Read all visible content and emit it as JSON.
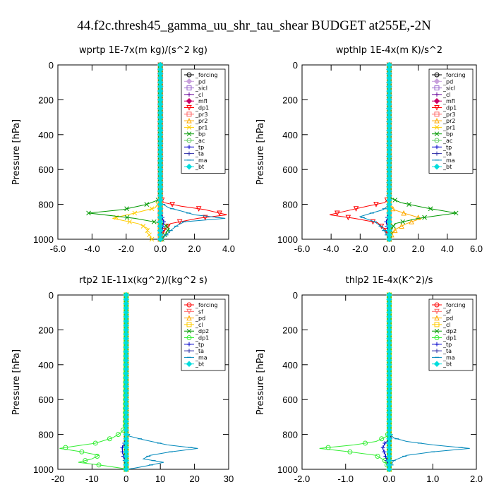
{
  "figure_title": "44.f2c.thresh45_gamma_uu_shr_tau_shear  BUDGET at255E,-2N",
  "chart_data": [
    {
      "type": "line",
      "title": "wprtp  1E-7x(m kg)/(s^2 kg)",
      "ylabel": "Pressure [hPa]",
      "xlim": [
        -6,
        4
      ],
      "ylim": [
        1000,
        0
      ],
      "xticks": [
        "-6.0",
        "-4.0",
        "-2.0",
        "0.0",
        "2.0",
        "4.0"
      ],
      "xtick_values": [
        -6,
        -4,
        -2,
        0,
        2,
        4
      ],
      "yticks": [
        "0",
        "200",
        "400",
        "600",
        "800",
        "1000"
      ],
      "ytick_values": [
        0,
        200,
        400,
        600,
        800,
        1000
      ],
      "legend_position": "top-right",
      "series": [
        {
          "name": "_forcing",
          "color": "#000000",
          "marker": "circle",
          "x": [
            0,
            0,
            0
          ],
          "y": [
            0,
            500,
            1000
          ]
        },
        {
          "name": "_pd",
          "color": "#c8a0dc",
          "marker": "diamond",
          "x": [
            0,
            0,
            0
          ],
          "y": [
            0,
            500,
            1000
          ]
        },
        {
          "name": "_sicl",
          "color": "#9966cc",
          "marker": "square",
          "x": [
            0,
            0,
            0
          ],
          "y": [
            0,
            500,
            1000
          ]
        },
        {
          "name": "_cl",
          "color": "#660099",
          "marker": "plus",
          "x": [
            0,
            0,
            0
          ],
          "y": [
            0,
            500,
            1000
          ]
        },
        {
          "name": "_mfl",
          "color": "#cc0066",
          "marker": "diamond",
          "x": [
            0,
            0,
            0
          ],
          "y": [
            0,
            500,
            1000
          ]
        },
        {
          "name": "_dp1",
          "color": "#ff0000",
          "marker": "triangle-down",
          "x": [
            0,
            0,
            0.2,
            1.2,
            2.6,
            3.9,
            2.2,
            0.6,
            0.1,
            0
          ],
          "y": [
            0,
            760,
            790,
            810,
            830,
            860,
            880,
            910,
            960,
            1000
          ]
        },
        {
          "name": "_pr3",
          "color": "#ff6666",
          "marker": "square",
          "x": [
            0,
            0,
            0
          ],
          "y": [
            0,
            500,
            1000
          ]
        },
        {
          "name": "_pr2",
          "color": "#ffaa00",
          "marker": "triangle-up",
          "x": [
            0,
            0,
            0
          ],
          "y": [
            0,
            500,
            1000
          ]
        },
        {
          "name": "_pr1",
          "color": "#ffcc00",
          "marker": "x",
          "x": [
            0,
            0,
            -0.3,
            -1.5,
            -2.8,
            -1.3,
            -0.7,
            -0.8,
            -0.6,
            -0.5
          ],
          "y": [
            0,
            780,
            820,
            850,
            880,
            910,
            940,
            960,
            980,
            1000
          ]
        },
        {
          "name": "_bp",
          "color": "#009900",
          "marker": "x",
          "x": [
            0,
            0,
            -0.8,
            -2.2,
            -4.2,
            -1.5,
            0.2,
            0.5,
            0.3,
            0.1
          ],
          "y": [
            0,
            770,
            800,
            830,
            850,
            880,
            910,
            940,
            970,
            1000
          ]
        },
        {
          "name": "_ac",
          "color": "#66cc66",
          "marker": "circle",
          "x": [
            0,
            0,
            0
          ],
          "y": [
            0,
            500,
            1000
          ]
        },
        {
          "name": "_tp",
          "color": "#0000cc",
          "marker": "plus",
          "x": [
            0,
            0,
            0.1,
            0.2,
            0.1,
            0
          ],
          "y": [
            0,
            840,
            870,
            900,
            950,
            1000
          ]
        },
        {
          "name": "_ta",
          "color": "#3333aa",
          "marker": "plus",
          "x": [
            0,
            0,
            0
          ],
          "y": [
            0,
            500,
            1000
          ]
        },
        {
          "name": "_ma",
          "color": "#0088bb",
          "marker": "dash",
          "x": [
            0,
            0,
            0.5,
            1.3,
            2.0,
            3.8,
            1.4,
            1.0,
            0.6,
            0.3,
            0
          ],
          "y": [
            0,
            790,
            820,
            840,
            860,
            880,
            900,
            920,
            950,
            980,
            1000
          ]
        },
        {
          "name": "_bt",
          "color": "#00dddd",
          "marker": "diamond",
          "x": [
            0,
            0,
            0
          ],
          "y": [
            0,
            500,
            1000
          ]
        }
      ]
    },
    {
      "type": "line",
      "title": "wpthlp  1E-4x(m K)/s^2",
      "ylabel": "Pressure [hPa]",
      "xlim": [
        -6,
        6
      ],
      "ylim": [
        1000,
        0
      ],
      "xticks": [
        "-6.0",
        "-4.0",
        "-2.0",
        "0.0",
        "2.0",
        "4.0",
        "6.0"
      ],
      "xtick_values": [
        -6,
        -4,
        -2,
        0,
        2,
        4,
        6
      ],
      "yticks": [
        "0",
        "200",
        "400",
        "600",
        "800",
        "1000"
      ],
      "ytick_values": [
        0,
        200,
        400,
        600,
        800,
        1000
      ],
      "legend_position": "top-right",
      "series": [
        {
          "name": "_forcing",
          "color": "#000000",
          "marker": "circle",
          "x": [
            0,
            0,
            0
          ],
          "y": [
            0,
            500,
            1000
          ]
        },
        {
          "name": "_pd",
          "color": "#c8a0dc",
          "marker": "diamond",
          "x": [
            0,
            0,
            0
          ],
          "y": [
            0,
            500,
            1000
          ]
        },
        {
          "name": "_sicl",
          "color": "#9966cc",
          "marker": "square",
          "x": [
            0,
            0,
            0
          ],
          "y": [
            0,
            500,
            1000
          ]
        },
        {
          "name": "_cl",
          "color": "#660099",
          "marker": "plus",
          "x": [
            0,
            0,
            0
          ],
          "y": [
            0,
            500,
            1000
          ]
        },
        {
          "name": "_mfl",
          "color": "#cc0066",
          "marker": "diamond",
          "x": [
            0,
            0,
            0
          ],
          "y": [
            0,
            500,
            1000
          ]
        },
        {
          "name": "_dp1",
          "color": "#ff0000",
          "marker": "triangle-down",
          "x": [
            0,
            0,
            -0.3,
            -1.5,
            -2.8,
            -4.1,
            -2.4,
            -0.8,
            -0.2,
            0
          ],
          "y": [
            0,
            760,
            790,
            810,
            835,
            860,
            880,
            905,
            950,
            1000
          ]
        },
        {
          "name": "_pr3",
          "color": "#ff6666",
          "marker": "square",
          "x": [
            0,
            0,
            0
          ],
          "y": [
            0,
            500,
            1000
          ]
        },
        {
          "name": "_pr2",
          "color": "#ffaa00",
          "marker": "triangle-up",
          "x": [
            0,
            0,
            0.3,
            1.0,
            2.2,
            1.2,
            0.5,
            0.2,
            0
          ],
          "y": [
            0,
            800,
            830,
            850,
            880,
            910,
            940,
            970,
            1000
          ]
        },
        {
          "name": "_pr1",
          "color": "#ffcc00",
          "marker": "x",
          "x": [
            0,
            0,
            0
          ],
          "y": [
            0,
            500,
            1000
          ]
        },
        {
          "name": "_bp",
          "color": "#009900",
          "marker": "x",
          "x": [
            0,
            0,
            0.8,
            2.5,
            4.6,
            2.0,
            0.4,
            0.1,
            0
          ],
          "y": [
            0,
            760,
            790,
            820,
            850,
            880,
            910,
            950,
            1000
          ]
        },
        {
          "name": "_ac",
          "color": "#66cc66",
          "marker": "circle",
          "x": [
            0,
            0,
            0
          ],
          "y": [
            0,
            500,
            1000
          ]
        },
        {
          "name": "_tp",
          "color": "#0000cc",
          "marker": "plus",
          "x": [
            0,
            0,
            -0.1,
            -0.2,
            -0.1,
            0
          ],
          "y": [
            0,
            840,
            870,
            900,
            950,
            1000
          ]
        },
        {
          "name": "_ta",
          "color": "#3333aa",
          "marker": "plus",
          "x": [
            0,
            0,
            0
          ],
          "y": [
            0,
            500,
            1000
          ]
        },
        {
          "name": "_ma",
          "color": "#0088bb",
          "marker": "dash",
          "x": [
            0,
            0,
            -0.4,
            -1.2,
            -2.0,
            -1.0,
            -0.5,
            -0.2,
            0
          ],
          "y": [
            0,
            800,
            830,
            850,
            870,
            900,
            930,
            970,
            1000
          ]
        },
        {
          "name": "_bt",
          "color": "#00dddd",
          "marker": "diamond",
          "x": [
            0,
            0,
            0
          ],
          "y": [
            0,
            500,
            1000
          ]
        }
      ]
    },
    {
      "type": "line",
      "title": "rtp2  1E-11x(kg^2)/(kg^2 s)",
      "ylabel": "Pressure [hPa]",
      "xlim": [
        -20,
        30
      ],
      "ylim": [
        1000,
        0
      ],
      "xticks": [
        "-20",
        "-10",
        "0",
        "10",
        "20",
        "30"
      ],
      "xtick_values": [
        -20,
        -10,
        0,
        10,
        20,
        30
      ],
      "yticks": [
        "0",
        "200",
        "400",
        "600",
        "800",
        "1000"
      ],
      "ytick_values": [
        0,
        200,
        400,
        600,
        800,
        1000
      ],
      "legend_position": "top-right",
      "series": [
        {
          "name": "_forcing",
          "color": "#ff0000",
          "marker": "circle",
          "x": [
            0,
            0,
            0
          ],
          "y": [
            0,
            500,
            1000
          ]
        },
        {
          "name": "_sf",
          "color": "#ff6666",
          "marker": "triangle-down",
          "x": [
            0,
            0,
            0
          ],
          "y": [
            0,
            500,
            1000
          ]
        },
        {
          "name": "_pd",
          "color": "#ffaa00",
          "marker": "triangle-up",
          "x": [
            0,
            0,
            0
          ],
          "y": [
            0,
            500,
            1000
          ]
        },
        {
          "name": "_cl",
          "color": "#ffcc00",
          "marker": "square",
          "x": [
            0,
            0,
            0
          ],
          "y": [
            0,
            500,
            1000
          ]
        },
        {
          "name": "_dp2",
          "color": "#009900",
          "marker": "x",
          "x": [
            0,
            0,
            0
          ],
          "y": [
            0,
            500,
            1000
          ]
        },
        {
          "name": "_dp1",
          "color": "#33ee33",
          "marker": "circle",
          "x": [
            0,
            -0.3,
            -1.5,
            -4.0,
            -9.0,
            -19.5,
            -13.0,
            -8.0,
            -10.0,
            -14.0,
            -6.0,
            -1.0,
            0
          ],
          "y": [
            0,
            760,
            790,
            820,
            850,
            880,
            900,
            920,
            940,
            960,
            980,
            995,
            1000
          ]
        },
        {
          "name": "_tp",
          "color": "#0000cc",
          "marker": "plus",
          "x": [
            0,
            0,
            -0.5,
            -1.2,
            -1.0,
            -0.4,
            0
          ],
          "y": [
            0,
            820,
            850,
            880,
            910,
            950,
            1000
          ]
        },
        {
          "name": "_ta",
          "color": "#3333aa",
          "marker": "plus",
          "x": [
            0,
            0,
            0
          ],
          "y": [
            0,
            500,
            1000
          ]
        },
        {
          "name": "_ma",
          "color": "#0088bb",
          "marker": "dash",
          "x": [
            0,
            0,
            1.0,
            5.0,
            12.0,
            21.0,
            13.0,
            7.0,
            5.0,
            11.0,
            6.0,
            2.0,
            0
          ],
          "y": [
            0,
            790,
            810,
            830,
            860,
            880,
            900,
            920,
            940,
            960,
            980,
            995,
            1000
          ]
        },
        {
          "name": "_bt",
          "color": "#00dddd",
          "marker": "diamond",
          "x": [
            0,
            0,
            0
          ],
          "y": [
            0,
            500,
            1000
          ]
        }
      ]
    },
    {
      "type": "line",
      "title": "thlp2  1E-4x(K^2)/s",
      "ylabel": "Pressure [hPa]",
      "xlim": [
        -2,
        2
      ],
      "ylim": [
        1000,
        0
      ],
      "xticks": [
        "-2.0",
        "-1.0",
        "0.0",
        "1.0",
        "2.0"
      ],
      "xtick_values": [
        -2,
        -1,
        0,
        1,
        2
      ],
      "yticks": [
        "0",
        "200",
        "400",
        "600",
        "800",
        "1000"
      ],
      "ytick_values": [
        0,
        200,
        400,
        600,
        800,
        1000
      ],
      "legend_position": "top-right",
      "series": [
        {
          "name": "_forcing",
          "color": "#ff0000",
          "marker": "circle",
          "x": [
            0,
            0,
            0
          ],
          "y": [
            0,
            500,
            1000
          ]
        },
        {
          "name": "_sf",
          "color": "#ff6666",
          "marker": "triangle-down",
          "x": [
            0,
            0,
            0
          ],
          "y": [
            0,
            500,
            1000
          ]
        },
        {
          "name": "_pd",
          "color": "#ffaa00",
          "marker": "triangle-up",
          "x": [
            0,
            0,
            0
          ],
          "y": [
            0,
            500,
            1000
          ]
        },
        {
          "name": "_cl",
          "color": "#ffcc00",
          "marker": "square",
          "x": [
            0,
            0,
            0
          ],
          "y": [
            0,
            500,
            1000
          ]
        },
        {
          "name": "_dp2",
          "color": "#009900",
          "marker": "x",
          "x": [
            0,
            0,
            0
          ],
          "y": [
            0,
            500,
            1000
          ]
        },
        {
          "name": "_dp1",
          "color": "#33ee33",
          "marker": "circle",
          "x": [
            0,
            0,
            -0.05,
            -0.3,
            -0.8,
            -1.6,
            -0.9,
            -0.3,
            -0.1,
            0
          ],
          "y": [
            0,
            780,
            810,
            840,
            860,
            880,
            900,
            920,
            950,
            1000
          ]
        },
        {
          "name": "_tp",
          "color": "#0000cc",
          "marker": "plus",
          "x": [
            0,
            0,
            0.05,
            -0.1,
            -0.15,
            -0.1,
            -0.05,
            0
          ],
          "y": [
            0,
            800,
            820,
            850,
            880,
            910,
            950,
            1000
          ]
        },
        {
          "name": "_ta",
          "color": "#3333aa",
          "marker": "plus",
          "x": [
            0,
            0,
            0
          ],
          "y": [
            0,
            500,
            1000
          ]
        },
        {
          "name": "_ma",
          "color": "#0088bb",
          "marker": "dash",
          "x": [
            0,
            0,
            0.1,
            0.4,
            1.0,
            1.85,
            1.0,
            0.4,
            0.1,
            0
          ],
          "y": [
            0,
            790,
            820,
            840,
            860,
            880,
            900,
            920,
            950,
            1000
          ]
        },
        {
          "name": "_bt",
          "color": "#00dddd",
          "marker": "diamond",
          "x": [
            0,
            0,
            0
          ],
          "y": [
            0,
            500,
            1000
          ]
        }
      ]
    }
  ]
}
